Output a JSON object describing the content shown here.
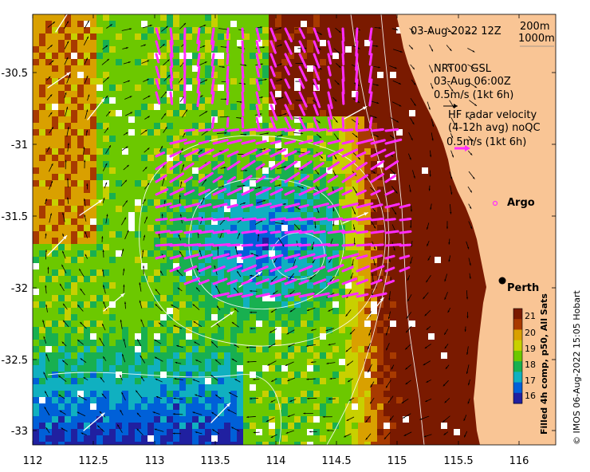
{
  "map": {
    "date_label": "03-Aug-2022 12Z",
    "isobath_labels": [
      "200m",
      "1000m"
    ],
    "gsl_title": "NRT00 GSL",
    "gsl_time": "03-Aug 06:00Z",
    "gsl_scale": "0.5m/s (1kt 6h)",
    "radar_title": "HF radar velocity",
    "radar_detail": "(4-12h avg) noQC",
    "radar_scale": "0.5m/s (1kt 6h)",
    "argo_label": "Argo",
    "city_label": "Perth",
    "credit": "© IMOS 06-Aug-2022 15:05 Hobart",
    "lon_ticks": [
      "112",
      "112.5",
      "113",
      "113.5",
      "114",
      "114.5",
      "115",
      "115.5",
      "116"
    ],
    "lat_ticks": [
      "-30.5",
      "-31",
      "-31.5",
      "-32",
      "-32.5",
      "-33"
    ],
    "colors": {
      "land": "#f9c595",
      "radar_arrow": "#ff2cff",
      "gsl_arrow": "#ffffff",
      "small_arrow": "#000000"
    }
  },
  "colorbar": {
    "title": "Filled 4h comp, p50, All Sats",
    "labels": [
      "21",
      "20",
      "19",
      "18",
      "17",
      "16"
    ],
    "colors": [
      "#7a1a00",
      "#a83a00",
      "#d9a000",
      "#c8d000",
      "#6cc800",
      "#18b050",
      "#10b0c0",
      "#0060d8",
      "#2020a0"
    ]
  }
}
